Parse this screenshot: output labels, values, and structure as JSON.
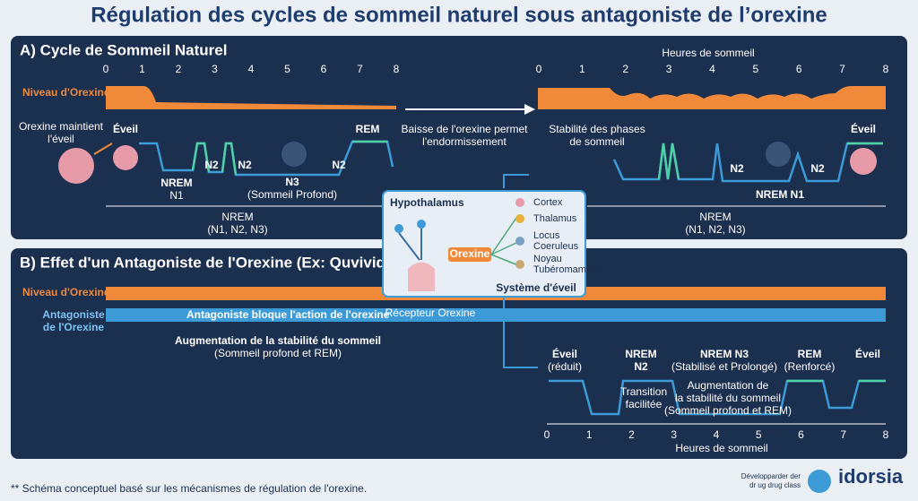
{
  "title": "Régulation des cycles de sommeil naturel sous antagoniste de l’orexine",
  "panel_a": {
    "heading": "A) Cycle de Sommeil Naturel",
    "axis_left": [
      0,
      1,
      2,
      3,
      4,
      5,
      6,
      7,
      8
    ],
    "axis_right": [
      0,
      1,
      2,
      3,
      4,
      5,
      6,
      7,
      8
    ],
    "axis_right_label": "Heures de sommeil",
    "orexin_label": "Niveau d'Orexine",
    "left_note": [
      "Orexine maintient",
      "l'éveil"
    ],
    "left_stages": {
      "wake": "Éveil",
      "nrem": "NREM",
      "n1": "N1",
      "n2a": "N2",
      "n2b": "N2",
      "n3": "N3",
      "n3_note": "(Sommeil Profond)",
      "n2c": "N2",
      "rem": "REM"
    },
    "left_group": [
      "NREM",
      "(N1, N2, N3)"
    ],
    "middle_note": [
      "Baisse de l'orexine permet",
      "l'endormissement"
    ],
    "right_note": [
      "Stabilité des phases",
      "de sommeil"
    ],
    "right_stages": {
      "n2a": "N2",
      "n2b": "N2",
      "wake": "Éveil",
      "n1": "NREM N1"
    },
    "right_group": [
      "NREM",
      "(N1, N2, N3)"
    ]
  },
  "center_box": {
    "title": "Hypothalamus",
    "orexin": "Orexine",
    "receptor": "Récepteur Orexine",
    "targets": [
      "Cortex",
      "Thalamus",
      "Locus",
      "Coeruleus",
      "Noyau",
      "Tubéromamillaire"
    ],
    "system": "Système d'éveil"
  },
  "panel_b": {
    "heading": "B) Effet d'un Antagoniste de l'Orexine (Ex: Quviviq)",
    "orexin_label": "Niveau d'Orexine",
    "antagonist_label": [
      "Antagoniste",
      "de l'Orexine"
    ],
    "antagonist_action": "Antagoniste bloque l'action de l'orexine",
    "left_note": [
      "Augmentation de la stabilité du sommeil",
      "(Sommeil profond et REM)"
    ],
    "stages": {
      "wake": [
        "Éveil",
        "(réduit)"
      ],
      "n2": [
        "NREM",
        "N2"
      ],
      "n3": [
        "NREM N3",
        "(Stabilisé et Prolongé)"
      ],
      "rem": [
        "REM",
        "(Renforcé)"
      ],
      "wake_end": "Éveil"
    },
    "transition": [
      "Transition",
      "facilitée"
    ],
    "right_note": [
      "Augmentation de",
      "la stabilité du sommeil",
      "(Sommeil profond et REM)"
    ],
    "axis": [
      0,
      1,
      2,
      3,
      4,
      5,
      6,
      7,
      8
    ],
    "axis_label": "Heures de sommeil"
  },
  "footer": {
    "note": "** Schéma conceptuel basé sur les mécanismes de régulation de l'orexine.",
    "brand_caption": [
      "Développarder der",
      "dr ug drug class"
    ],
    "brand": "idorsia"
  }
}
